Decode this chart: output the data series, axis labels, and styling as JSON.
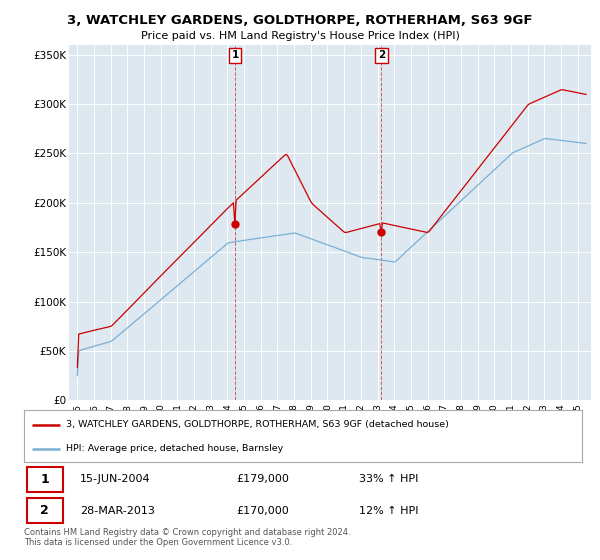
{
  "title": "3, WATCHLEY GARDENS, GOLDTHORPE, ROTHERHAM, S63 9GF",
  "subtitle": "Price paid vs. HM Land Registry's House Price Index (HPI)",
  "legend_label_red": "3, WATCHLEY GARDENS, GOLDTHORPE, ROTHERHAM, S63 9GF (detached house)",
  "legend_label_blue": "HPI: Average price, detached house, Barnsley",
  "sale1_date": "15-JUN-2004",
  "sale1_price": 179000,
  "sale1_hpi": "33% ↑ HPI",
  "sale2_date": "28-MAR-2013",
  "sale2_price": 170000,
  "sale2_hpi": "12% ↑ HPI",
  "footer": "Contains HM Land Registry data © Crown copyright and database right 2024.\nThis data is licensed under the Open Government Licence v3.0.",
  "ylim": [
    0,
    360000
  ],
  "yticks": [
    0,
    50000,
    100000,
    150000,
    200000,
    250000,
    300000,
    350000
  ],
  "background_color": "#ffffff",
  "plot_bg_color": "#dde8f0",
  "red_color": "#cc0000",
  "blue_color": "#7bafd4",
  "annotation_box_color": "#cc0000",
  "grid_color": "#ffffff",
  "title_fontsize": 9.5,
  "subtitle_fontsize": 8.0
}
